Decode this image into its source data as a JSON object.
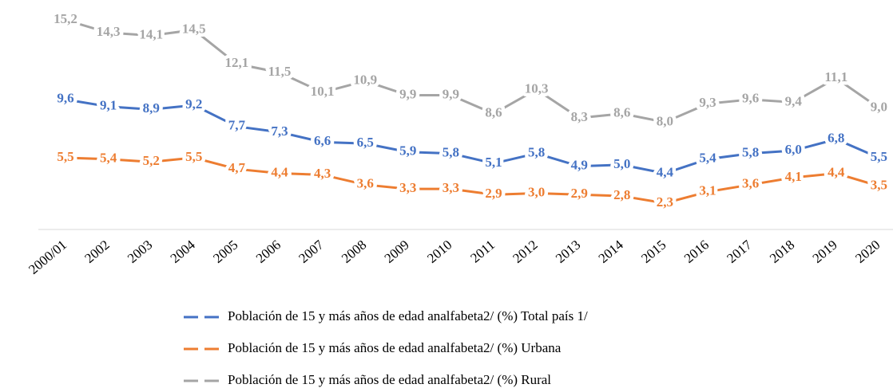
{
  "chart_data": {
    "type": "line",
    "categories": [
      "2000/01",
      "2002",
      "2003",
      "2004",
      "2005",
      "2006",
      "2007",
      "2008",
      "2009",
      "2010",
      "2011",
      "2012",
      "2013",
      "2014",
      "2015",
      "2016",
      "2017",
      "2018",
      "2019",
      "2020"
    ],
    "series": [
      {
        "name": "Población de 15 y más años de edad analfabeta2/ (%) Total país 1/",
        "color": "#4472c4",
        "values": [
          9.6,
          9.1,
          8.9,
          9.2,
          7.7,
          7.3,
          6.6,
          6.5,
          5.9,
          5.8,
          5.1,
          5.8,
          4.9,
          5.0,
          4.4,
          5.4,
          5.8,
          6.0,
          6.8,
          5.5
        ],
        "value_labels": [
          "9,6",
          "9,1",
          "8,9",
          "9,2",
          "7,7",
          "7,3",
          "6,6",
          "6,5",
          "5,9",
          "5,8",
          "5,1",
          "5,8",
          "4,9",
          "5,0",
          "4,4",
          "5,4",
          "5,8",
          "6,0",
          "6,8",
          "5,5"
        ]
      },
      {
        "name": "Población de 15 y más años de edad analfabeta2/ (%) Urbana",
        "color": "#ed7d31",
        "values": [
          5.5,
          5.4,
          5.2,
          5.5,
          4.7,
          4.4,
          4.3,
          3.6,
          3.3,
          3.3,
          2.9,
          3.0,
          2.9,
          2.8,
          2.3,
          3.1,
          3.6,
          4.1,
          4.4,
          3.5
        ],
        "value_labels": [
          "5,5",
          "5,4",
          "5,2",
          "5,5",
          "4,7",
          "4,4",
          "4,3",
          "3,6",
          "3,3",
          "3,3",
          "2,9",
          "3,0",
          "2,9",
          "2,8",
          "2,3",
          "3,1",
          "3,6",
          "4,1",
          "4,4",
          "3,5"
        ]
      },
      {
        "name": "Población de 15 y más años de edad analfabeta2/ (%) Rural",
        "color": "#a5a5a5",
        "values": [
          15.2,
          14.3,
          14.1,
          14.5,
          12.1,
          11.5,
          10.1,
          10.9,
          9.9,
          9.9,
          8.6,
          10.3,
          8.3,
          8.6,
          8.0,
          9.3,
          9.6,
          9.4,
          11.1,
          9.0
        ],
        "value_labels": [
          "15,2",
          "14,3",
          "14,1",
          "14,5",
          "12,1",
          "11,5",
          "10,1",
          "10,9",
          "9,9",
          "9,9",
          "8,6",
          "10,3",
          "8,3",
          "8,6",
          "8,0",
          "9,3",
          "9,6",
          "9,4",
          "11,1",
          "9,0"
        ]
      }
    ]
  }
}
